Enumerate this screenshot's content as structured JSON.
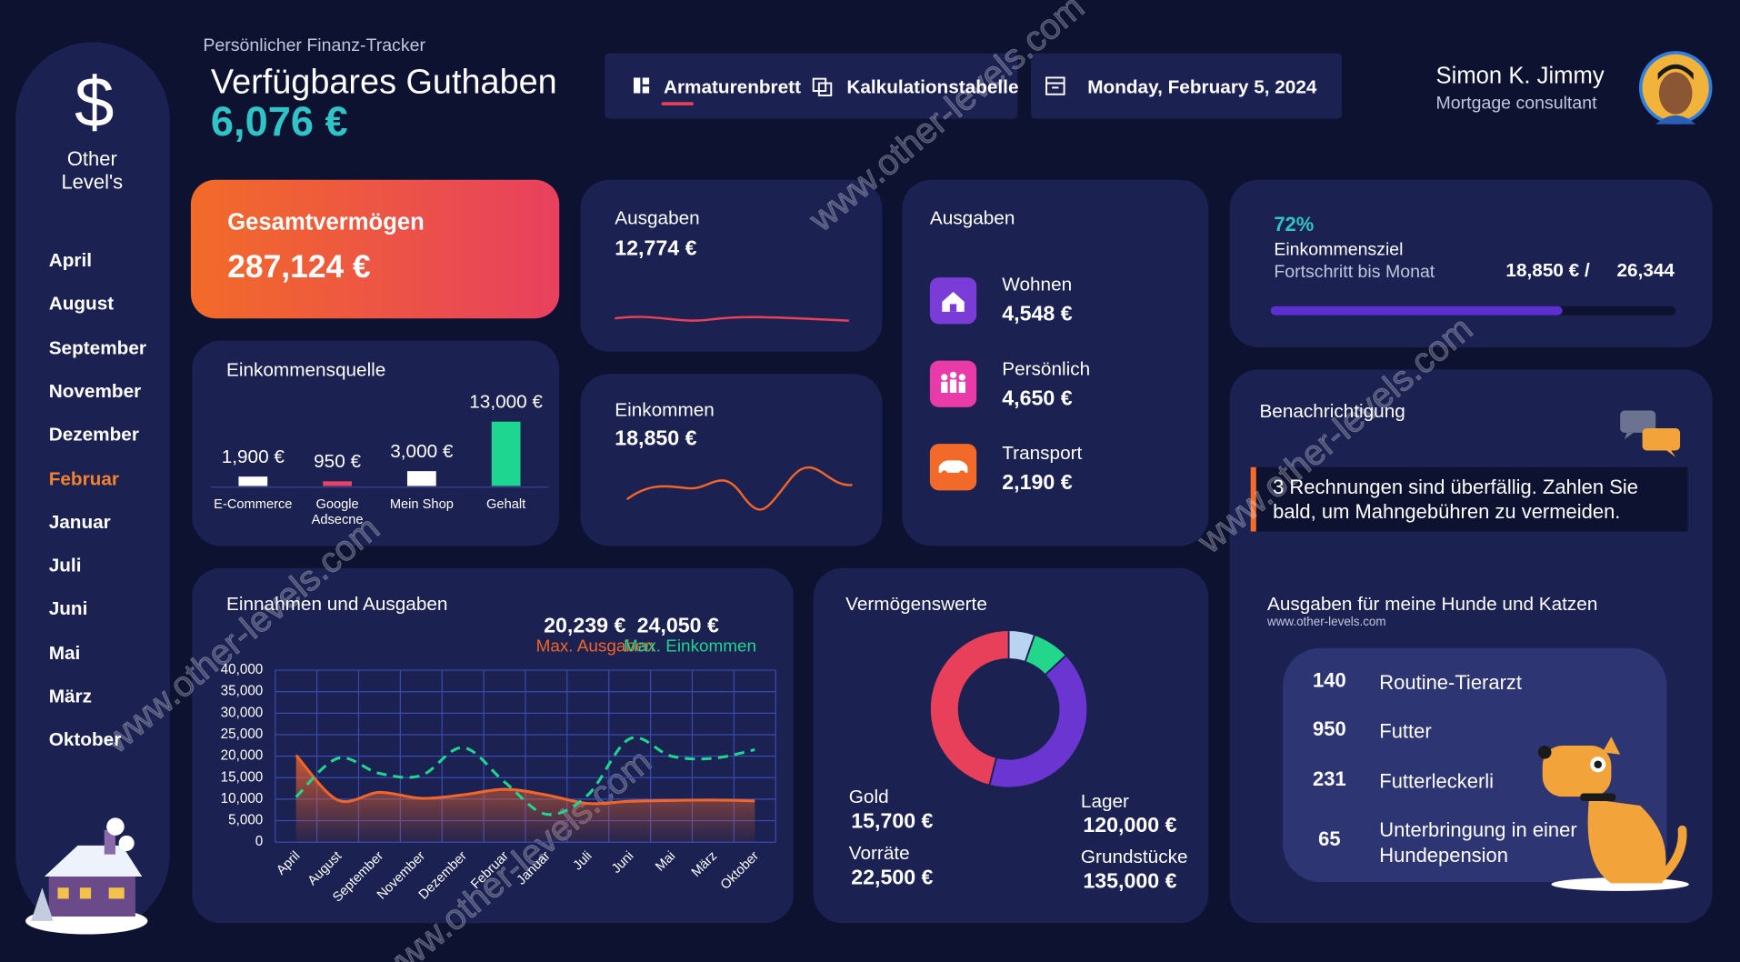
{
  "header": {
    "subtitle": "Persönlicher Finanz-Tracker",
    "title": "Verfügbares Guthaben",
    "balance": "6,076 €"
  },
  "nav": {
    "items": [
      "Armaturenbrett",
      "Kalkulationstabelle"
    ],
    "date": "Monday, February 5, 2024"
  },
  "user": {
    "name": "Simon K. Jimmy",
    "role": "Mortgage consultant"
  },
  "sidebar": {
    "logo": "$",
    "brand": [
      "Other",
      "Level's"
    ],
    "months": [
      "April",
      "August",
      "September",
      "November",
      "Dezember",
      "Februar",
      "Januar",
      "Juli",
      "Juni",
      "Mai",
      "März",
      "Oktober"
    ]
  },
  "watermark": "www.other-levels.com",
  "cards": {
    "total_assets": {
      "title": "Gesamtvermögen",
      "value": "287,124 €"
    },
    "expenses": {
      "title": "Ausgaben",
      "value": "12,774 €"
    },
    "income": {
      "title": "Einkommen",
      "value": "18,850 €"
    },
    "expense_categories": {
      "title": "Ausgaben",
      "items": [
        {
          "label": "Wohnen",
          "value": "4,548 €"
        },
        {
          "label": "Persönlich",
          "value": "4,650 €"
        },
        {
          "label": "Transport",
          "value": "2,190 €"
        }
      ]
    },
    "goal": {
      "title": "Einkommensziel",
      "subtitle": "Fortschritt bis Monat",
      "current": "18,850 € /",
      "target": "26,344"
    },
    "notifications": {
      "title": "Benachrichtigung",
      "message": "3 Rechnungen sind überfällig. Zahlen Sie bald, um Mahngebühren zu vermeiden."
    },
    "pets": {
      "title": "Ausgaben für meine Hunde und Katzen",
      "url": "www.other-levels.com",
      "items": [
        {
          "amount": 140,
          "label": "Routine-Tierarzt"
        },
        {
          "amount": 950,
          "label": "Futter"
        },
        {
          "amount": 231,
          "label": "Futterleckerli"
        },
        {
          "amount": 65,
          "label": "Unterbringung in einer Hundepension"
        }
      ]
    }
  },
  "chart_data": [
    {
      "type": "bar",
      "title": "Einkommensquelle",
      "categories": [
        "E-Commerce",
        "Google Adsecne",
        "Mein Shop",
        "Gehalt"
      ],
      "values": [
        1900,
        950,
        3000,
        13000
      ],
      "value_labels": [
        "1,900 €",
        "950 €",
        "3,000 €",
        "13,000 €"
      ],
      "colors": [
        "#ffffff",
        "#e8446a",
        "#ffffff",
        "#1ed68f"
      ]
    },
    {
      "type": "line",
      "title": "Einnahmen und Ausgaben",
      "categories": [
        "April",
        "August",
        "September",
        "November",
        "Dezember",
        "Februar",
        "Januar",
        "Juli",
        "Juni",
        "Mai",
        "März",
        "Oktober"
      ],
      "series": [
        {
          "name": "Max. Ausgaben",
          "max_label": "20,239 €",
          "color": "#f0652a",
          "values": [
            20239,
            9800,
            11600,
            10200,
            11000,
            12300,
            11000,
            9000,
            9500,
            9700,
            9800,
            9600
          ]
        },
        {
          "name": "Max. Einkommen",
          "max_label": "24,050 €",
          "color": "#1ed68f",
          "values": [
            10500,
            19500,
            16000,
            15500,
            22000,
            14000,
            6500,
            11000,
            24050,
            20000,
            19500,
            21500
          ]
        }
      ],
      "ylim": [
        0,
        40000
      ],
      "yticks": [
        0,
        {
          "value": 5000,
          "label": "5,000"
        },
        {
          "value": 10000,
          "label": "10,000"
        },
        {
          "value": 15000,
          "label": "15,000"
        },
        {
          "value": 20000,
          "label": "20,000"
        },
        {
          "value": 25000,
          "label": "25,000"
        },
        {
          "value": 30000,
          "label": "30,000"
        },
        {
          "value": 35000,
          "label": "35,000"
        },
        {
          "value": 40000,
          "label": "40,000"
        }
      ],
      "grid": true
    },
    {
      "type": "donut",
      "title": "Vermögenswerte",
      "categories": [
        "Gold",
        "Vorräte",
        "Lager",
        "Grundstücke"
      ],
      "values": [
        15700,
        22500,
        120000,
        135000
      ],
      "value_labels": [
        "15,700 €",
        "22,500 €",
        "120,000 €",
        "135,000 €"
      ],
      "colors": [
        "#b8d4f0",
        "#22d68c",
        "#6a35d0",
        "#e8405a"
      ]
    },
    {
      "type": "progress",
      "values": [
        72
      ],
      "value_labels": [
        "72%"
      ],
      "xlim": [
        0,
        100
      ],
      "color": "#5b2fd0"
    }
  ]
}
